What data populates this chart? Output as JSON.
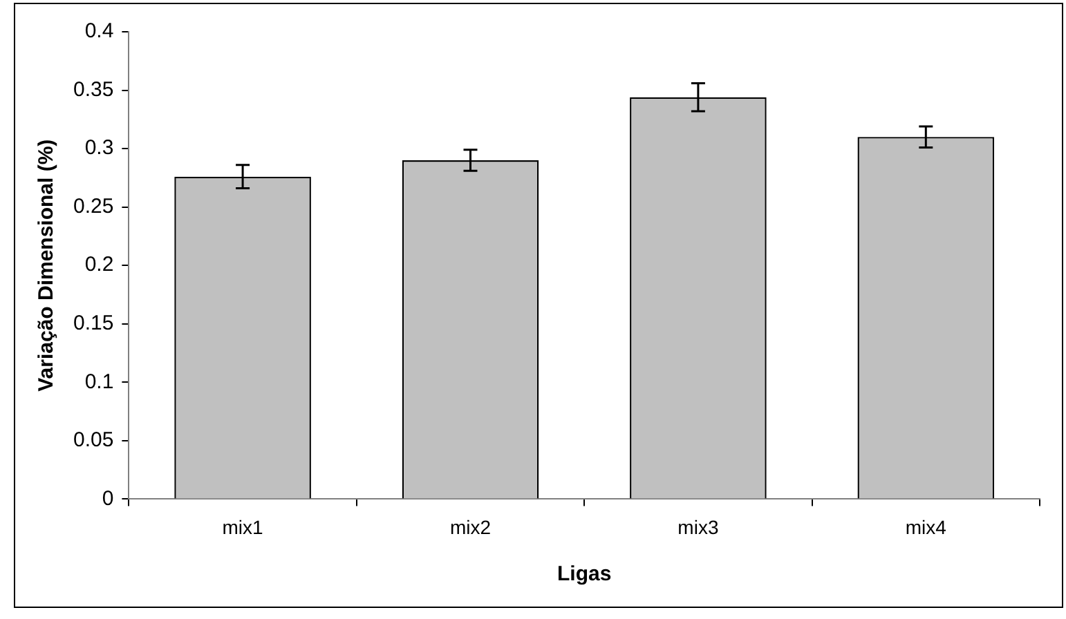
{
  "chart_data": {
    "type": "bar",
    "xlabel": "Ligas",
    "ylabel": "Variação Dimensional (%)",
    "categories": [
      "mix1",
      "mix2",
      "mix3",
      "mix4"
    ],
    "values": [
      0.276,
      0.29,
      0.344,
      0.31
    ],
    "errors": [
      0.01,
      0.009,
      0.012,
      0.009
    ],
    "color": "#c0c0c0",
    "ylim": [
      0,
      0.4
    ],
    "yticks": [
      0,
      0.05,
      0.1,
      0.15,
      0.2,
      0.25,
      0.3,
      0.35,
      0.4
    ],
    "grid": false,
    "legend": false
  }
}
